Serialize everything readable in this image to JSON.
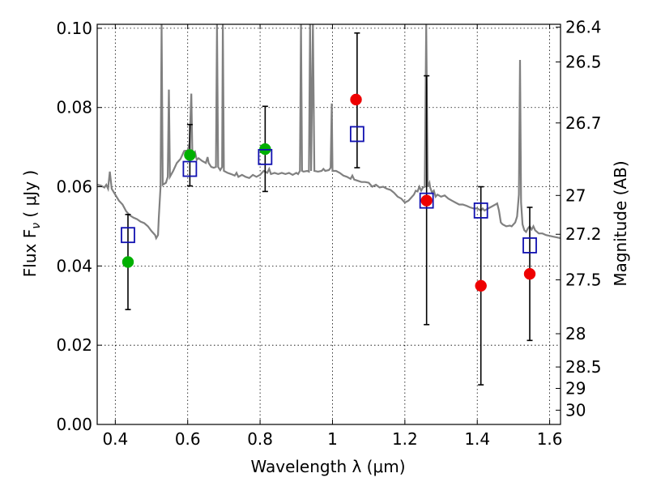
{
  "chart_data": {
    "type": "scatter",
    "xlabel": "Wavelength  λ (μm)",
    "ylabel": "Flux  F",
    "ylabel_subscript": "ν",
    "ylabel_units": " ( μJy )",
    "y2label": "Magnitude (AB)",
    "xlim": [
      0.35,
      1.63
    ],
    "ylim": [
      0.0,
      0.101
    ],
    "grid": true,
    "x_ticks": [
      0.4,
      0.6,
      0.8,
      1.0,
      1.2,
      1.4,
      1.6
    ],
    "x_tick_labels": [
      "0.4",
      "0.6",
      "0.8",
      "1",
      "1.2",
      "1.4",
      "1.6"
    ],
    "y_ticks": [
      0.0,
      0.02,
      0.04,
      0.06,
      0.08,
      0.1
    ],
    "y_tick_labels": [
      "0.00",
      "0.02",
      "0.04",
      "0.06",
      "0.08",
      "0.10"
    ],
    "y2_ticks": [
      {
        "label": "26.4",
        "flux": 0.1003
      },
      {
        "label": "26.5",
        "flux": 0.0915
      },
      {
        "label": "26.7",
        "flux": 0.0761
      },
      {
        "label": "27",
        "flux": 0.0578
      },
      {
        "label": "27.2",
        "flux": 0.048
      },
      {
        "label": "27.5",
        "flux": 0.0365
      },
      {
        "label": "28",
        "flux": 0.0229
      },
      {
        "label": "28.5",
        "flux": 0.0145
      },
      {
        "label": "29",
        "flux": 0.0091
      },
      {
        "label": "30",
        "flux": 0.0036
      }
    ],
    "colors": {
      "model": "#808080",
      "model_flux": "#1010b0",
      "observed_detection": "#00b000",
      "observed_limit": "#ee0000",
      "errorbar": "#000000"
    },
    "model_flux_points": [
      {
        "x": 0.435,
        "y": 0.0478
      },
      {
        "x": 0.606,
        "y": 0.0645
      },
      {
        "x": 0.814,
        "y": 0.0675
      },
      {
        "x": 1.068,
        "y": 0.0733
      },
      {
        "x": 1.26,
        "y": 0.0565
      },
      {
        "x": 1.41,
        "y": 0.054
      },
      {
        "x": 1.545,
        "y": 0.0452
      }
    ],
    "observed_points": [
      {
        "x": 0.435,
        "y": 0.041,
        "kind": "detection"
      },
      {
        "x": 0.606,
        "y": 0.068,
        "kind": "detection"
      },
      {
        "x": 0.814,
        "y": 0.0695,
        "kind": "detection"
      },
      {
        "x": 1.065,
        "y": 0.082,
        "kind": "limit"
      },
      {
        "x": 1.26,
        "y": 0.0565,
        "kind": "limit"
      },
      {
        "x": 1.41,
        "y": 0.035,
        "kind": "limit"
      },
      {
        "x": 1.545,
        "y": 0.038,
        "kind": "limit"
      }
    ],
    "error_bars": [
      {
        "x": 0.435,
        "low": 0.029,
        "high": 0.053
      },
      {
        "x": 0.606,
        "low": 0.0602,
        "high": 0.0757
      },
      {
        "x": 0.814,
        "low": 0.0588,
        "high": 0.0803
      },
      {
        "x": 1.068,
        "low": 0.0648,
        "high": 0.0988
      },
      {
        "x": 1.26,
        "low": 0.0252,
        "high": 0.088
      },
      {
        "x": 1.41,
        "low": 0.01,
        "high": 0.06
      },
      {
        "x": 1.545,
        "low": 0.0212,
        "high": 0.0548
      }
    ],
    "model_spectrum": [
      [
        0.35,
        0.0605
      ],
      [
        0.36,
        0.0603
      ],
      [
        0.37,
        0.0598
      ],
      [
        0.375,
        0.0605
      ],
      [
        0.38,
        0.0595
      ],
      [
        0.385,
        0.0638
      ],
      [
        0.39,
        0.0595
      ],
      [
        0.4,
        0.058
      ],
      [
        0.41,
        0.0565
      ],
      [
        0.42,
        0.0555
      ],
      [
        0.43,
        0.0538
      ],
      [
        0.44,
        0.0528
      ],
      [
        0.45,
        0.0522
      ],
      [
        0.46,
        0.0518
      ],
      [
        0.47,
        0.0512
      ],
      [
        0.48,
        0.0508
      ],
      [
        0.49,
        0.05
      ],
      [
        0.5,
        0.0488
      ],
      [
        0.51,
        0.0478
      ],
      [
        0.513,
        0.047
      ],
      [
        0.518,
        0.0478
      ],
      [
        0.52,
        0.052
      ],
      [
        0.525,
        0.06
      ],
      [
        0.528,
        0.101
      ],
      [
        0.531,
        0.0605
      ],
      [
        0.54,
        0.061
      ],
      [
        0.545,
        0.0625
      ],
      [
        0.548,
        0.0845
      ],
      [
        0.551,
        0.0625
      ],
      [
        0.56,
        0.064
      ],
      [
        0.57,
        0.066
      ],
      [
        0.58,
        0.067
      ],
      [
        0.59,
        0.069
      ],
      [
        0.6,
        0.0692
      ],
      [
        0.605,
        0.071
      ],
      [
        0.61,
        0.0835
      ],
      [
        0.613,
        0.068
      ],
      [
        0.62,
        0.0688
      ],
      [
        0.625,
        0.0668
      ],
      [
        0.63,
        0.0672
      ],
      [
        0.64,
        0.0665
      ],
      [
        0.65,
        0.066
      ],
      [
        0.655,
        0.0675
      ],
      [
        0.658,
        0.066
      ],
      [
        0.665,
        0.065
      ],
      [
        0.672,
        0.0648
      ],
      [
        0.678,
        0.065
      ],
      [
        0.681,
        0.101
      ],
      [
        0.684,
        0.065
      ],
      [
        0.69,
        0.0642
      ],
      [
        0.695,
        0.065
      ],
      [
        0.697,
        0.101
      ],
      [
        0.7,
        0.064
      ],
      [
        0.71,
        0.0635
      ],
      [
        0.72,
        0.0632
      ],
      [
        0.73,
        0.0628
      ],
      [
        0.735,
        0.0635
      ],
      [
        0.74,
        0.0625
      ],
      [
        0.75,
        0.063
      ],
      [
        0.76,
        0.0625
      ],
      [
        0.77,
        0.0622
      ],
      [
        0.78,
        0.063
      ],
      [
        0.79,
        0.0625
      ],
      [
        0.8,
        0.063
      ],
      [
        0.805,
        0.0635
      ],
      [
        0.81,
        0.064
      ],
      [
        0.82,
        0.0635
      ],
      [
        0.825,
        0.0645
      ],
      [
        0.83,
        0.0632
      ],
      [
        0.84,
        0.0635
      ],
      [
        0.85,
        0.0632
      ],
      [
        0.86,
        0.0635
      ],
      [
        0.87,
        0.0632
      ],
      [
        0.88,
        0.0635
      ],
      [
        0.89,
        0.063
      ],
      [
        0.9,
        0.0635
      ],
      [
        0.905,
        0.0632
      ],
      [
        0.91,
        0.064
      ],
      [
        0.913,
        0.101
      ],
      [
        0.916,
        0.064
      ],
      [
        0.92,
        0.0638
      ],
      [
        0.93,
        0.064
      ],
      [
        0.935,
        0.0638
      ],
      [
        0.938,
        0.101
      ],
      [
        0.941,
        0.064
      ],
      [
        0.946,
        0.101
      ],
      [
        0.95,
        0.064
      ],
      [
        0.96,
        0.0638
      ],
      [
        0.97,
        0.064
      ],
      [
        0.975,
        0.0645
      ],
      [
        0.98,
        0.064
      ],
      [
        0.99,
        0.0642
      ],
      [
        0.995,
        0.0648
      ],
      [
        0.998,
        0.081
      ],
      [
        1.0,
        0.064
      ],
      [
        1.01,
        0.064
      ],
      [
        1.02,
        0.0635
      ],
      [
        1.03,
        0.0628
      ],
      [
        1.04,
        0.0625
      ],
      [
        1.05,
        0.062
      ],
      [
        1.055,
        0.0628
      ],
      [
        1.06,
        0.0618
      ],
      [
        1.07,
        0.0615
      ],
      [
        1.08,
        0.0612
      ],
      [
        1.09,
        0.0612
      ],
      [
        1.1,
        0.061
      ],
      [
        1.11,
        0.06
      ],
      [
        1.12,
        0.0605
      ],
      [
        1.13,
        0.0598
      ],
      [
        1.14,
        0.06
      ],
      [
        1.15,
        0.0595
      ],
      [
        1.16,
        0.0592
      ],
      [
        1.17,
        0.0585
      ],
      [
        1.18,
        0.0575
      ],
      [
        1.19,
        0.057
      ],
      [
        1.2,
        0.056
      ],
      [
        1.21,
        0.0565
      ],
      [
        1.22,
        0.0575
      ],
      [
        1.225,
        0.058
      ],
      [
        1.23,
        0.059
      ],
      [
        1.235,
        0.0588
      ],
      [
        1.24,
        0.06
      ],
      [
        1.245,
        0.059
      ],
      [
        1.25,
        0.0598
      ],
      [
        1.255,
        0.06
      ],
      [
        1.259,
        0.101
      ],
      [
        1.263,
        0.06
      ],
      [
        1.268,
        0.061
      ],
      [
        1.27,
        0.0598
      ],
      [
        1.275,
        0.0585
      ],
      [
        1.28,
        0.059
      ],
      [
        1.285,
        0.0575
      ],
      [
        1.29,
        0.058
      ],
      [
        1.3,
        0.0575
      ],
      [
        1.31,
        0.0578
      ],
      [
        1.32,
        0.057
      ],
      [
        1.33,
        0.0565
      ],
      [
        1.34,
        0.056
      ],
      [
        1.35,
        0.0555
      ],
      [
        1.36,
        0.0555
      ],
      [
        1.37,
        0.0552
      ],
      [
        1.38,
        0.0548
      ],
      [
        1.39,
        0.0545
      ],
      [
        1.4,
        0.0545
      ],
      [
        1.41,
        0.054
      ],
      [
        1.415,
        0.0545
      ],
      [
        1.42,
        0.054
      ],
      [
        1.43,
        0.0545
      ],
      [
        1.44,
        0.055
      ],
      [
        1.45,
        0.0555
      ],
      [
        1.455,
        0.0558
      ],
      [
        1.46,
        0.054
      ],
      [
        1.465,
        0.051
      ],
      [
        1.47,
        0.0505
      ],
      [
        1.48,
        0.05
      ],
      [
        1.49,
        0.0502
      ],
      [
        1.495,
        0.05
      ],
      [
        1.5,
        0.0505
      ],
      [
        1.505,
        0.051
      ],
      [
        1.51,
        0.0525
      ],
      [
        1.515,
        0.058
      ],
      [
        1.518,
        0.092
      ],
      [
        1.521,
        0.056
      ],
      [
        1.525,
        0.0505
      ],
      [
        1.53,
        0.049
      ],
      [
        1.535,
        0.0486
      ],
      [
        1.54,
        0.0495
      ],
      [
        1.545,
        0.05
      ],
      [
        1.55,
        0.0492
      ],
      [
        1.555,
        0.05
      ],
      [
        1.56,
        0.049
      ],
      [
        1.57,
        0.0482
      ],
      [
        1.58,
        0.0482
      ],
      [
        1.59,
        0.0478
      ],
      [
        1.6,
        0.0476
      ],
      [
        1.61,
        0.0474
      ],
      [
        1.62,
        0.0472
      ],
      [
        1.63,
        0.047
      ]
    ]
  }
}
